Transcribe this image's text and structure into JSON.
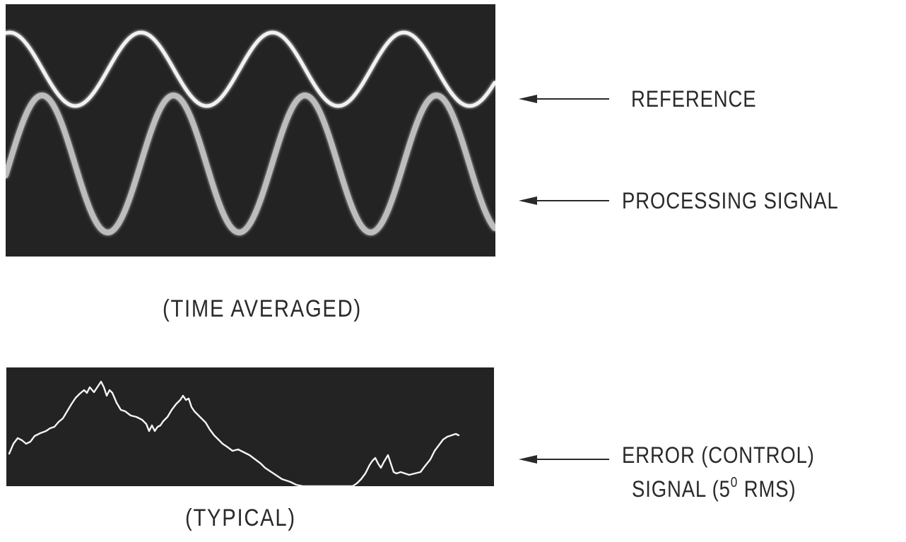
{
  "labels": {
    "reference": "REFERENCE",
    "processing": "PROCESSING SIGNAL",
    "error_line1": "ERROR (CONTROL)",
    "error_line2_pre": "SIGNAL (5",
    "error_line2_sup": "0",
    "error_line2_post": " RMS)"
  },
  "captions": {
    "top": "(TIME AVERAGED)",
    "bottom": "(TYPICAL)"
  },
  "colors": {
    "scope_background": "#232323",
    "trace": "#f2f2f2",
    "ink": "#2a2a2a"
  },
  "icons": [
    "arrow-left-icon"
  ]
}
